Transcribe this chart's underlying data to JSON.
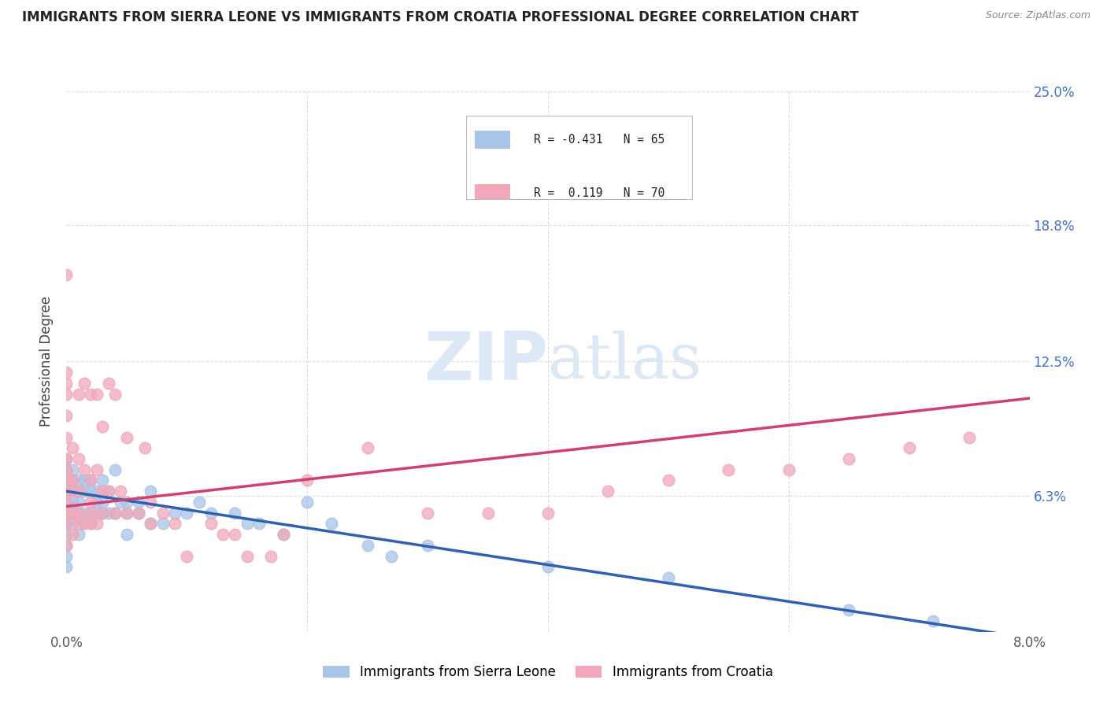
{
  "title": "IMMIGRANTS FROM SIERRA LEONE VS IMMIGRANTS FROM CROATIA PROFESSIONAL DEGREE CORRELATION CHART",
  "source": "Source: ZipAtlas.com",
  "ylabel": "Professional Degree",
  "legend_labels": [
    "Immigrants from Sierra Leone",
    "Immigrants from Croatia"
  ],
  "blue_color": "#a8c4e8",
  "pink_color": "#f0a8b8",
  "blue_line_color": "#3060b0",
  "pink_line_color": "#d04070",
  "xmin": 0.0,
  "xmax": 8.0,
  "ymin": 0.0,
  "ymax": 25.0,
  "yticks": [
    0.0,
    6.3,
    12.5,
    18.8,
    25.0
  ],
  "xticks": [
    0.0,
    2.0,
    4.0,
    6.0,
    8.0
  ],
  "watermark_zip": "ZIP",
  "watermark_atlas": "atlas",
  "blue_scatter_x": [
    0.0,
    0.0,
    0.0,
    0.0,
    0.0,
    0.0,
    0.0,
    0.0,
    0.0,
    0.0,
    0.0,
    0.0,
    0.05,
    0.05,
    0.05,
    0.05,
    0.05,
    0.05,
    0.1,
    0.1,
    0.1,
    0.1,
    0.1,
    0.15,
    0.15,
    0.15,
    0.15,
    0.2,
    0.2,
    0.2,
    0.2,
    0.25,
    0.25,
    0.25,
    0.3,
    0.3,
    0.3,
    0.35,
    0.35,
    0.4,
    0.4,
    0.45,
    0.5,
    0.5,
    0.5,
    0.6,
    0.6,
    0.7,
    0.7,
    0.8,
    0.9,
    1.0,
    1.1,
    1.2,
    1.4,
    1.5,
    1.6,
    1.8,
    2.0,
    2.2,
    2.5,
    2.7,
    3.0,
    4.0,
    5.0,
    6.5,
    7.2
  ],
  "blue_scatter_y": [
    4.0,
    4.5,
    5.0,
    5.5,
    6.0,
    6.0,
    6.5,
    7.0,
    7.5,
    8.0,
    3.5,
    3.0,
    5.0,
    5.5,
    6.0,
    6.5,
    7.0,
    7.5,
    4.5,
    5.5,
    6.0,
    6.5,
    7.0,
    5.0,
    5.5,
    6.5,
    7.0,
    5.0,
    5.5,
    6.5,
    7.0,
    5.5,
    6.0,
    6.5,
    5.5,
    6.0,
    7.0,
    5.5,
    6.5,
    5.5,
    7.5,
    6.0,
    4.5,
    5.5,
    6.0,
    5.5,
    6.0,
    5.0,
    6.5,
    5.0,
    5.5,
    5.5,
    6.0,
    5.5,
    5.5,
    5.0,
    5.0,
    4.5,
    6.0,
    5.0,
    4.0,
    3.5,
    4.0,
    3.0,
    2.5,
    1.0,
    0.5
  ],
  "pink_scatter_x": [
    0.0,
    0.0,
    0.0,
    0.0,
    0.0,
    0.0,
    0.0,
    0.0,
    0.0,
    0.0,
    0.0,
    0.0,
    0.0,
    0.0,
    0.05,
    0.05,
    0.05,
    0.05,
    0.05,
    0.1,
    0.1,
    0.1,
    0.1,
    0.1,
    0.15,
    0.15,
    0.15,
    0.2,
    0.2,
    0.2,
    0.2,
    0.2,
    0.25,
    0.25,
    0.25,
    0.3,
    0.3,
    0.3,
    0.35,
    0.35,
    0.4,
    0.4,
    0.45,
    0.5,
    0.5,
    0.6,
    0.65,
    0.7,
    0.7,
    0.8,
    0.9,
    1.0,
    1.2,
    1.3,
    1.4,
    1.5,
    1.7,
    1.8,
    2.0,
    2.5,
    3.0,
    3.5,
    4.0,
    4.5,
    5.0,
    5.5,
    6.0,
    6.5,
    7.0,
    7.5
  ],
  "pink_scatter_y": [
    4.0,
    5.0,
    5.5,
    6.0,
    6.5,
    7.0,
    7.5,
    8.0,
    9.0,
    10.0,
    11.0,
    11.5,
    12.0,
    16.5,
    4.5,
    5.5,
    6.5,
    7.0,
    8.5,
    5.0,
    5.5,
    6.5,
    8.0,
    11.0,
    5.0,
    7.5,
    11.5,
    5.0,
    5.5,
    6.0,
    7.0,
    11.0,
    5.0,
    7.5,
    11.0,
    5.5,
    6.5,
    9.5,
    6.5,
    11.5,
    5.5,
    11.0,
    6.5,
    5.5,
    9.0,
    5.5,
    8.5,
    5.0,
    6.0,
    5.5,
    5.0,
    3.5,
    5.0,
    4.5,
    4.5,
    3.5,
    3.5,
    4.5,
    7.0,
    8.5,
    5.5,
    5.5,
    5.5,
    6.5,
    7.0,
    7.5,
    7.5,
    8.0,
    8.5,
    9.0
  ],
  "blue_trend_x0": 0.0,
  "blue_trend_y0": 6.5,
  "blue_trend_x1": 8.0,
  "blue_trend_y1": -0.3,
  "pink_trend_x0": 0.0,
  "pink_trend_y0": 5.8,
  "pink_trend_x1": 8.0,
  "pink_trend_y1": 10.8
}
